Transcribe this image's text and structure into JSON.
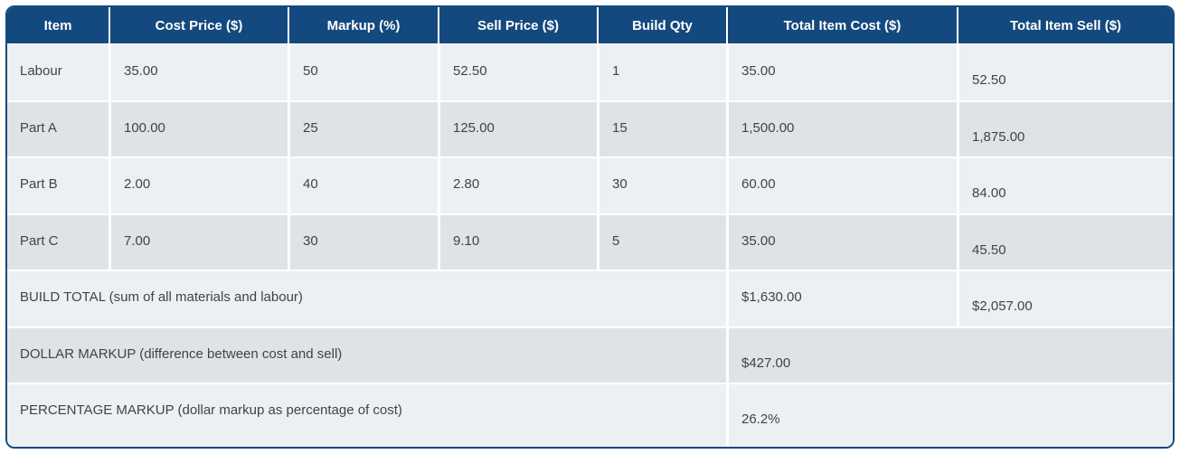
{
  "table": {
    "headers": [
      "Item",
      "Cost Price ($)",
      "Markup (%)",
      "Sell Price ($)",
      "Build Qty",
      "Total Item Cost ($)",
      "Total Item Sell ($)"
    ],
    "rows": [
      {
        "item": "Labour",
        "cost_price": "35.00",
        "markup_pct": "50",
        "sell_price": "52.50",
        "build_qty": "1",
        "total_item_cost": "35.00",
        "total_item_sell": "52.50"
      },
      {
        "item": "Part A",
        "cost_price": "100.00",
        "markup_pct": "25",
        "sell_price": "125.00",
        "build_qty": "15",
        "total_item_cost": "1,500.00",
        "total_item_sell": "1,875.00"
      },
      {
        "item": "Part B",
        "cost_price": "2.00",
        "markup_pct": "40",
        "sell_price": "2.80",
        "build_qty": "30",
        "total_item_cost": "60.00",
        "total_item_sell": "84.00"
      },
      {
        "item": "Part C",
        "cost_price": "7.00",
        "markup_pct": "30",
        "sell_price": "9.10",
        "build_qty": "5",
        "total_item_cost": "35.00",
        "total_item_sell": "45.50"
      }
    ],
    "summary": {
      "build_total": {
        "label": "BUILD TOTAL (sum of all materials and labour)",
        "total_item_cost": "$1,630.00",
        "total_item_sell": "$2,057.00"
      },
      "dollar_markup": {
        "label": "DOLLAR MARKUP (difference between cost and sell)",
        "value": "$427.00"
      },
      "percentage_markup": {
        "label": "PERCENTAGE MARKUP (dollar markup as percentage of cost)",
        "value": "26.2%"
      }
    },
    "colors": {
      "header_bg": "#14497F",
      "header_text": "#FFFFFF",
      "outer_border": "#14497F",
      "row_light": "#EDF0F2",
      "row_dark": "#DFE3E6",
      "cell_divider": "#FFFFFF",
      "body_text": "#3F4447"
    }
  }
}
